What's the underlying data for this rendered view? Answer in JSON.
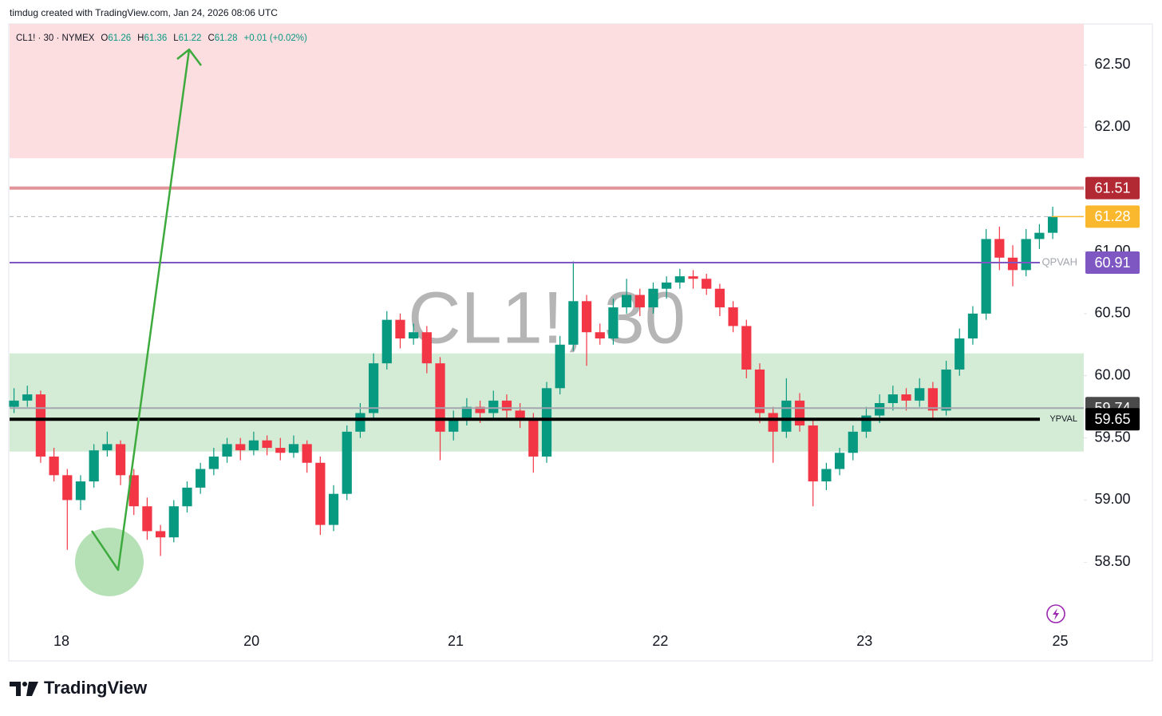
{
  "header": "timdug created with TradingView.com, Jan 24, 2026 08:06 UTC",
  "chart_data": {
    "type": "candlestick",
    "symbol": "CL1! · 30 · NYMEX",
    "watermark": "CL1!, 30",
    "ohlc": [
      {
        "label": "O",
        "value": 61.26
      },
      {
        "label": "H",
        "value": 61.36
      },
      {
        "label": "L",
        "value": 61.22
      },
      {
        "label": "C",
        "value": 61.28
      }
    ],
    "change": "+0.01 (+0.02%)",
    "up_color": "#089981",
    "down_color": "#f23645",
    "xlim": [
      0,
      242
    ],
    "xticks": [
      {
        "value": 11.7,
        "label": "18"
      },
      {
        "value": 54.5,
        "label": "20"
      },
      {
        "value": 100.5,
        "label": "21"
      },
      {
        "value": 146.6,
        "label": "22"
      },
      {
        "value": 192.6,
        "label": "23"
      },
      {
        "value": 236.7,
        "label": "25"
      }
    ],
    "ylim": [
      57.95,
      62.83
    ],
    "yticks": [
      {
        "value": 58.5,
        "label": "58.50"
      },
      {
        "value": 59,
        "label": "59.00"
      },
      {
        "value": 59.5,
        "label": "59.50"
      },
      {
        "value": 60,
        "label": "60.00"
      },
      {
        "value": 60.5,
        "label": "60.50"
      },
      {
        "value": 61,
        "label": "61.00"
      },
      {
        "value": 61.5,
        "label": "61.50"
      },
      {
        "value": 62,
        "label": "62.00"
      },
      {
        "value": 62.5,
        "label": "62.50"
      }
    ],
    "zones": [
      {
        "from": 61.75,
        "to": 62.83,
        "color": "#fcdde0"
      },
      {
        "from": 59.39,
        "to": 60.18,
        "color": "#d4ecd5"
      }
    ],
    "levels": [
      {
        "value": 61.51,
        "color": "#e3939a",
        "badge_color": "#b22833",
        "width": 4
      },
      {
        "value": 61.28,
        "color": "#b2b5be",
        "badge_color": "#f9b82e",
        "width": 1,
        "style": "dashed"
      },
      {
        "name": "QPVAH",
        "value": 60.91,
        "color": "#7e57c2",
        "badge_color": "#7e57c2",
        "width": 2
      },
      {
        "value": 59.74,
        "color": "#a3a6af",
        "badge_color": "#4a4a4a",
        "width": 2
      },
      {
        "name": "YPVAL",
        "value": 59.65,
        "color": "#000000",
        "badge_color": "#000000",
        "width": 4
      }
    ],
    "candles": [
      [
        1,
        59.75,
        59.9,
        59.7,
        59.8
      ],
      [
        4,
        59.8,
        59.92,
        59.75,
        59.85
      ],
      [
        7,
        59.85,
        59.88,
        59.3,
        59.35
      ],
      [
        10,
        59.35,
        59.42,
        59.15,
        59.2
      ],
      [
        13,
        59.2,
        59.25,
        58.6,
        59.0
      ],
      [
        16,
        59.0,
        59.2,
        58.92,
        59.15
      ],
      [
        19,
        59.15,
        59.45,
        59.1,
        59.4
      ],
      [
        22,
        59.4,
        59.55,
        59.35,
        59.45
      ],
      [
        25,
        59.45,
        59.48,
        59.12,
        59.2
      ],
      [
        28,
        59.2,
        59.25,
        58.88,
        58.95
      ],
      [
        31,
        58.95,
        59.02,
        58.68,
        58.75
      ],
      [
        34,
        58.75,
        58.8,
        58.55,
        58.7
      ],
      [
        37,
        58.7,
        59.0,
        58.66,
        58.95
      ],
      [
        40,
        58.95,
        59.15,
        58.9,
        59.1
      ],
      [
        43,
        59.1,
        59.3,
        59.05,
        59.25
      ],
      [
        46,
        59.25,
        59.42,
        59.2,
        59.35
      ],
      [
        49,
        59.35,
        59.5,
        59.3,
        59.45
      ],
      [
        52,
        59.45,
        59.5,
        59.32,
        59.4
      ],
      [
        55,
        59.4,
        59.55,
        59.36,
        59.48
      ],
      [
        58,
        59.48,
        59.52,
        59.36,
        59.42
      ],
      [
        61,
        59.42,
        59.5,
        59.32,
        59.38
      ],
      [
        64,
        59.38,
        59.52,
        59.34,
        59.45
      ],
      [
        67,
        59.45,
        59.48,
        59.22,
        59.3
      ],
      [
        70,
        59.3,
        59.35,
        58.72,
        58.8
      ],
      [
        73,
        58.8,
        59.12,
        58.75,
        59.05
      ],
      [
        76,
        59.05,
        59.6,
        59.0,
        59.55
      ],
      [
        79,
        59.55,
        59.78,
        59.5,
        59.7
      ],
      [
        82,
        59.7,
        60.18,
        59.65,
        60.1
      ],
      [
        85,
        60.1,
        60.52,
        60.05,
        60.45
      ],
      [
        88,
        60.45,
        60.5,
        60.22,
        60.3
      ],
      [
        91,
        60.3,
        60.42,
        60.25,
        60.35
      ],
      [
        94,
        60.35,
        60.4,
        60.02,
        60.1
      ],
      [
        97,
        60.1,
        60.15,
        59.32,
        59.55
      ],
      [
        100,
        59.55,
        59.72,
        59.48,
        59.65
      ],
      [
        103,
        59.65,
        59.82,
        59.6,
        59.75
      ],
      [
        106,
        59.75,
        59.8,
        59.62,
        59.7
      ],
      [
        109,
        59.7,
        59.88,
        59.65,
        59.8
      ],
      [
        112,
        59.8,
        59.85,
        59.66,
        59.72
      ],
      [
        115,
        59.72,
        59.78,
        59.58,
        59.65
      ],
      [
        118,
        59.65,
        59.7,
        59.22,
        59.35
      ],
      [
        121,
        59.35,
        59.95,
        59.3,
        59.9
      ],
      [
        124,
        59.9,
        60.32,
        59.85,
        60.25
      ],
      [
        127,
        60.25,
        60.92,
        60.2,
        60.6
      ],
      [
        130,
        60.6,
        60.65,
        60.08,
        60.35
      ],
      [
        133,
        60.35,
        60.42,
        60.25,
        60.3
      ],
      [
        136,
        60.3,
        60.62,
        60.25,
        60.55
      ],
      [
        139,
        60.55,
        60.78,
        60.5,
        60.65
      ],
      [
        142,
        60.65,
        60.7,
        60.48,
        60.55
      ],
      [
        145,
        60.55,
        60.75,
        60.5,
        60.7
      ],
      [
        148,
        60.7,
        60.8,
        60.62,
        60.75
      ],
      [
        151,
        60.75,
        60.86,
        60.7,
        60.8
      ],
      [
        154,
        60.8,
        60.85,
        60.7,
        60.78
      ],
      [
        157,
        60.78,
        60.82,
        60.65,
        60.7
      ],
      [
        160,
        60.7,
        60.74,
        60.48,
        60.55
      ],
      [
        163,
        60.55,
        60.6,
        60.35,
        60.4
      ],
      [
        166,
        60.4,
        60.45,
        59.98,
        60.05
      ],
      [
        169,
        60.05,
        60.1,
        59.62,
        59.7
      ],
      [
        172,
        59.7,
        59.75,
        59.3,
        59.55
      ],
      [
        175,
        59.55,
        59.98,
        59.5,
        59.8
      ],
      [
        178,
        59.8,
        59.86,
        59.55,
        59.6
      ],
      [
        181,
        59.6,
        59.65,
        58.95,
        59.15
      ],
      [
        184,
        59.15,
        59.3,
        59.08,
        59.25
      ],
      [
        187,
        59.25,
        59.42,
        59.2,
        59.38
      ],
      [
        190,
        59.38,
        59.6,
        59.32,
        59.55
      ],
      [
        193,
        59.55,
        59.75,
        59.5,
        59.68
      ],
      [
        196,
        59.68,
        59.85,
        59.62,
        59.78
      ],
      [
        199,
        59.78,
        59.92,
        59.72,
        59.85
      ],
      [
        202,
        59.85,
        59.9,
        59.72,
        59.8
      ],
      [
        205,
        59.8,
        59.98,
        59.75,
        59.9
      ],
      [
        208,
        59.9,
        59.95,
        59.65,
        59.72
      ],
      [
        211,
        59.72,
        60.12,
        59.68,
        60.05
      ],
      [
        214,
        60.05,
        60.38,
        60.0,
        60.3
      ],
      [
        217,
        60.3,
        60.56,
        60.25,
        60.5
      ],
      [
        220,
        60.5,
        61.18,
        60.45,
        61.1
      ],
      [
        223,
        61.1,
        61.2,
        60.85,
        60.95
      ],
      [
        226,
        60.95,
        61.05,
        60.72,
        60.85
      ],
      [
        229,
        60.85,
        61.18,
        60.8,
        61.1
      ],
      [
        232,
        61.1,
        61.22,
        61.02,
        61.15
      ],
      [
        235,
        61.15,
        61.36,
        61.1,
        61.28
      ]
    ]
  },
  "footer": {
    "brand": "TradingView"
  }
}
